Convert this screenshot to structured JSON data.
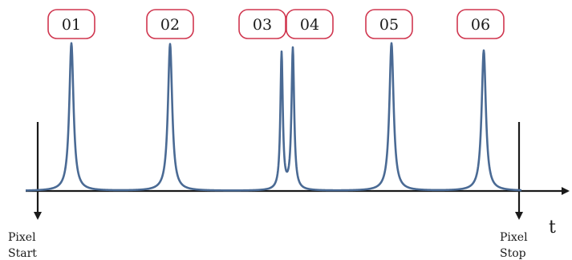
{
  "diagram": {
    "time_axis_label": "t",
    "pixel_start": {
      "line1": "Pixel",
      "line2": "Start"
    },
    "pixel_stop": {
      "line1": "Pixel",
      "line2": "Stop"
    },
    "pulses": [
      {
        "label": "01"
      },
      {
        "label": "02"
      },
      {
        "label": "03"
      },
      {
        "label": "04"
      },
      {
        "label": "05"
      },
      {
        "label": "06"
      }
    ],
    "colors": {
      "signal": "#4a6a94",
      "badge_border": "#d0364f",
      "axis": "#1a1a1a"
    }
  }
}
